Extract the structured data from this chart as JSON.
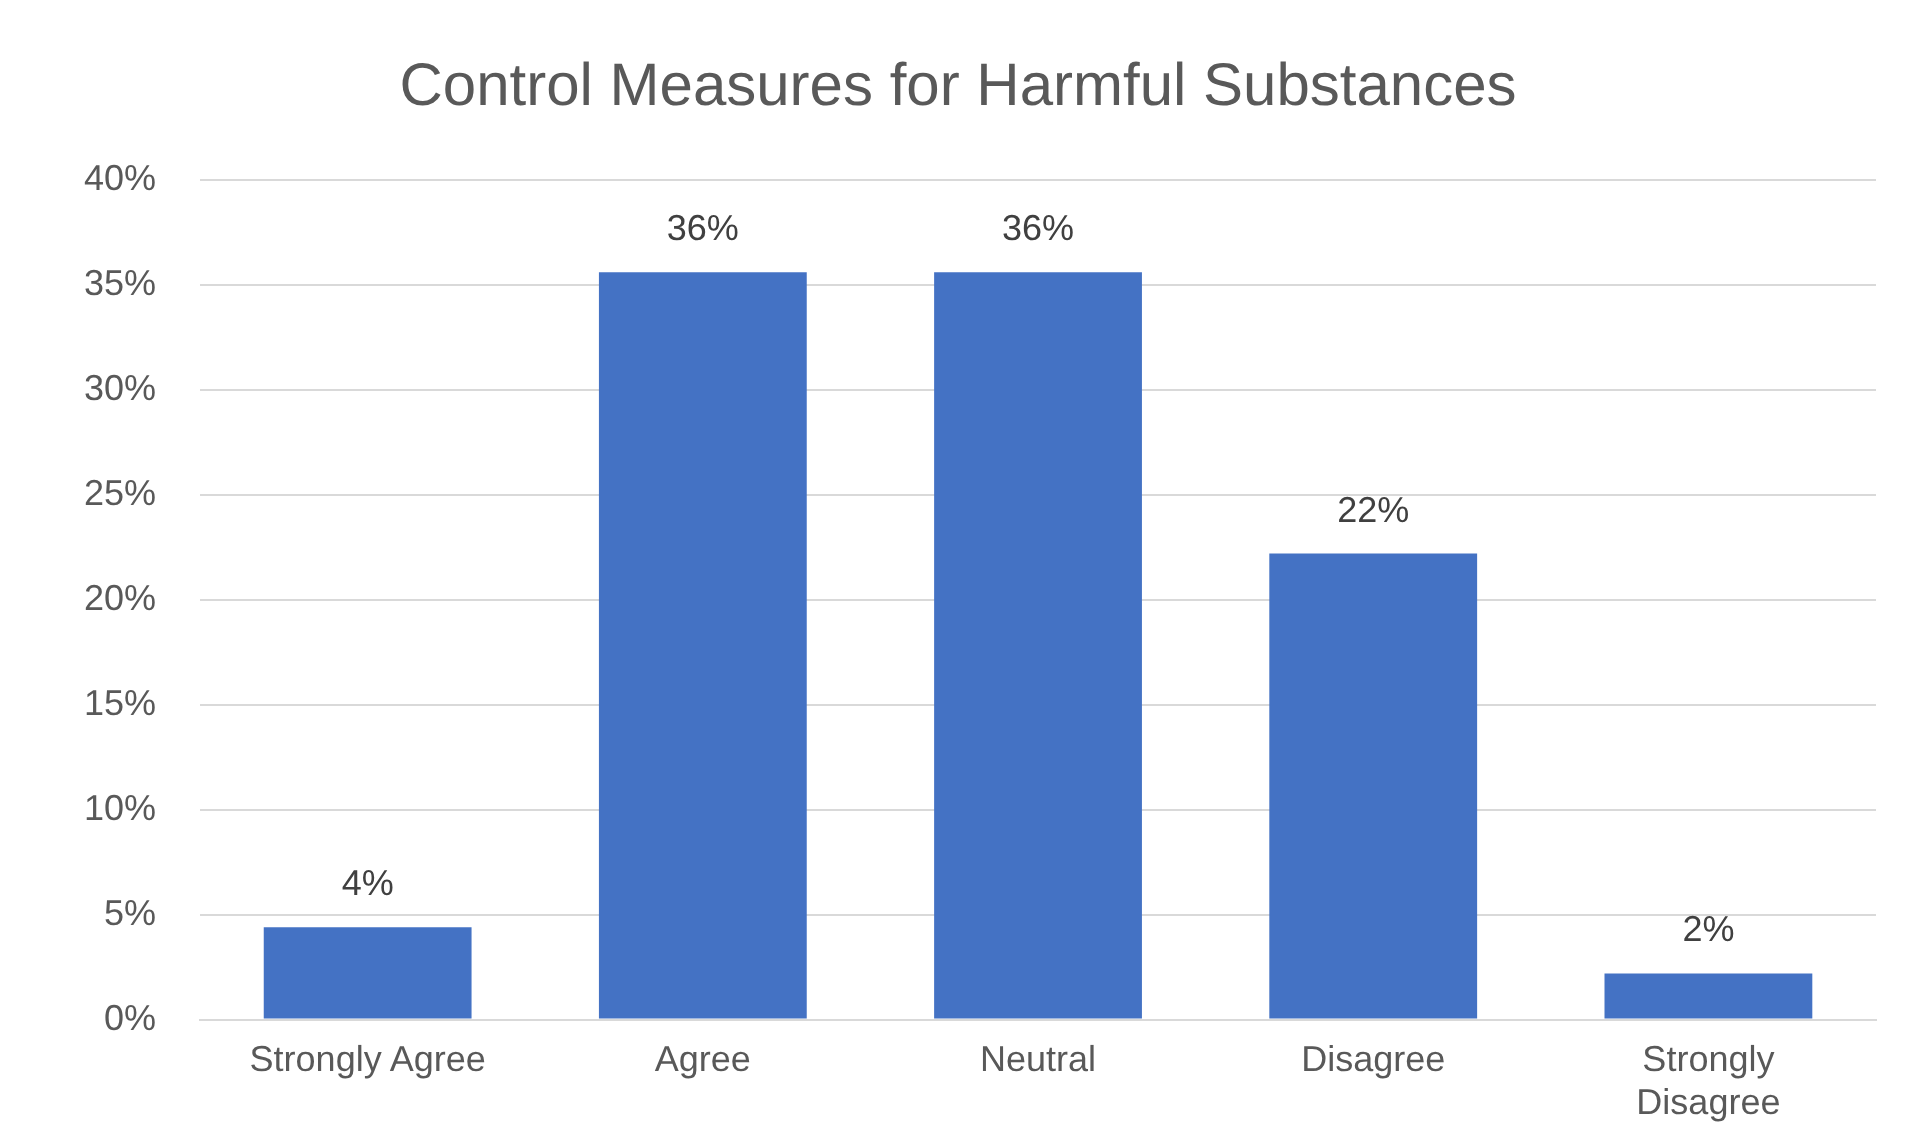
{
  "chart_data": {
    "type": "bar",
    "title": "Control Measures for Harmful Substances",
    "categories": [
      "Strongly Agree",
      "Agree",
      "Neutral",
      "Disagree",
      "Strongly Disagree"
    ],
    "values": [
      4.4,
      35.6,
      35.6,
      22.2,
      2.2
    ],
    "value_labels": [
      "4%",
      "36%",
      "36%",
      "22%",
      "2%"
    ],
    "color": "#4472c4",
    "ylim": [
      0,
      40
    ],
    "yticks": [
      {
        "value": 0,
        "label": "0%"
      },
      {
        "value": 5,
        "label": "5%"
      },
      {
        "value": 10,
        "label": "10%"
      },
      {
        "value": 15,
        "label": "15%"
      },
      {
        "value": 20,
        "label": "20%"
      },
      {
        "value": 25,
        "label": "25%"
      },
      {
        "value": 30,
        "label": "30%"
      },
      {
        "value": 35,
        "label": "35%"
      },
      {
        "value": 40,
        "label": "40%"
      }
    ],
    "grid": "y",
    "legend": false
  }
}
